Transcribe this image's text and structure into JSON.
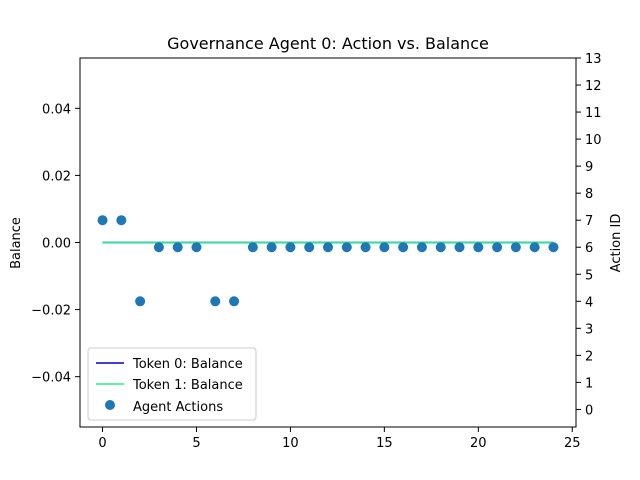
{
  "chart_data": {
    "type": "line+scatter",
    "title": "Governance Agent 0: Action vs. Balance",
    "xlabel": "",
    "ylabel": "Balance",
    "ylabel_right": "Action ID",
    "xlim": [
      -1.2,
      25.2
    ],
    "ylim": [
      -0.055,
      0.055
    ],
    "ylim_right": [
      -0.65,
      13
    ],
    "x_ticks": [
      0,
      5,
      10,
      15,
      20,
      25
    ],
    "y_ticks": [
      -0.04,
      -0.02,
      0.0,
      0.02,
      0.04
    ],
    "y_tick_labels": [
      "−0.04",
      "−0.02",
      "0.00",
      "0.02",
      "0.04"
    ],
    "y_right_ticks": [
      0,
      1,
      2,
      3,
      4,
      5,
      6,
      7,
      8,
      9,
      10,
      11,
      12,
      13
    ],
    "series": [
      {
        "name": "Token 0: Balance",
        "kind": "line",
        "color": "#0000cc",
        "x": [
          0,
          1,
          2,
          3,
          4,
          5,
          6,
          7,
          8,
          9,
          10,
          11,
          12,
          13,
          14,
          15,
          16,
          17,
          18,
          19,
          20,
          21,
          22,
          23,
          24
        ],
        "values": [
          0,
          0,
          0,
          0,
          0,
          0,
          0,
          0,
          0,
          0,
          0,
          0,
          0,
          0,
          0,
          0,
          0,
          0,
          0,
          0,
          0,
          0,
          0,
          0,
          0
        ]
      },
      {
        "name": "Token 1: Balance",
        "kind": "line",
        "color": "#22ee88",
        "x": [
          0,
          1,
          2,
          3,
          4,
          5,
          6,
          7,
          8,
          9,
          10,
          11,
          12,
          13,
          14,
          15,
          16,
          17,
          18,
          19,
          20,
          21,
          22,
          23,
          24
        ],
        "values": [
          0,
          0,
          0,
          0,
          0,
          0,
          0,
          0,
          0,
          0,
          0,
          0,
          0,
          0,
          0,
          0,
          0,
          0,
          0,
          0,
          0,
          0,
          0,
          0,
          0
        ]
      },
      {
        "name": "Agent Actions",
        "kind": "scatter",
        "axis": "right",
        "color": "#1f77b4",
        "x": [
          0,
          1,
          2,
          3,
          4,
          5,
          6,
          7,
          8,
          9,
          10,
          11,
          12,
          13,
          14,
          15,
          16,
          17,
          18,
          19,
          20,
          21,
          22,
          23,
          24
        ],
        "values": [
          7,
          7,
          4,
          6,
          6,
          6,
          4,
          4,
          6,
          6,
          6,
          6,
          6,
          6,
          6,
          6,
          6,
          6,
          6,
          6,
          6,
          6,
          6,
          6,
          6
        ]
      }
    ],
    "legend_position": "lower-left",
    "grid": false
  }
}
